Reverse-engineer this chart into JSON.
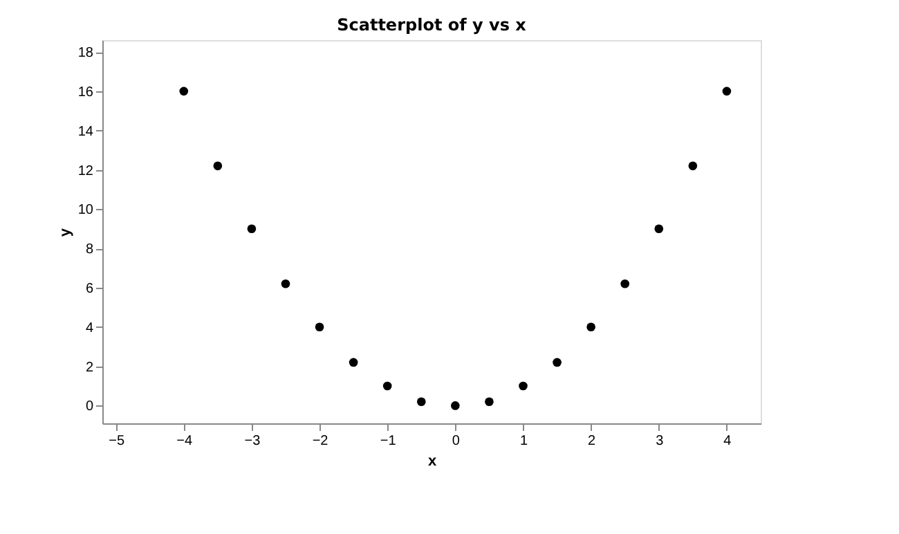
{
  "chart_data": {
    "type": "scatter",
    "title": "Scatterplot of y vs x",
    "xlabel": "x",
    "ylabel": "y",
    "x": [
      -4,
      -3.5,
      -3,
      -2.5,
      -2,
      -1.5,
      -1,
      -0.5,
      0,
      0.5,
      1,
      1.5,
      2,
      2.5,
      3,
      3.5,
      4
    ],
    "series": [
      {
        "color": "#000000",
        "values": [
          16,
          12.2,
          9,
          6.2,
          4,
          2.2,
          1,
          0.2,
          0,
          0.2,
          1,
          2.2,
          4,
          6.2,
          9,
          12.2,
          16
        ]
      }
    ],
    "xlim": [
      -5.2,
      4.5
    ],
    "ylim": [
      -0.9,
      18.6
    ],
    "xticks": [
      -5,
      -4,
      -3,
      -2,
      -1,
      0,
      1,
      2,
      3,
      4
    ],
    "yticks": [
      0,
      2,
      4,
      6,
      8,
      10,
      12,
      14,
      16,
      18
    ],
    "grid": false,
    "marker": "circle"
  }
}
